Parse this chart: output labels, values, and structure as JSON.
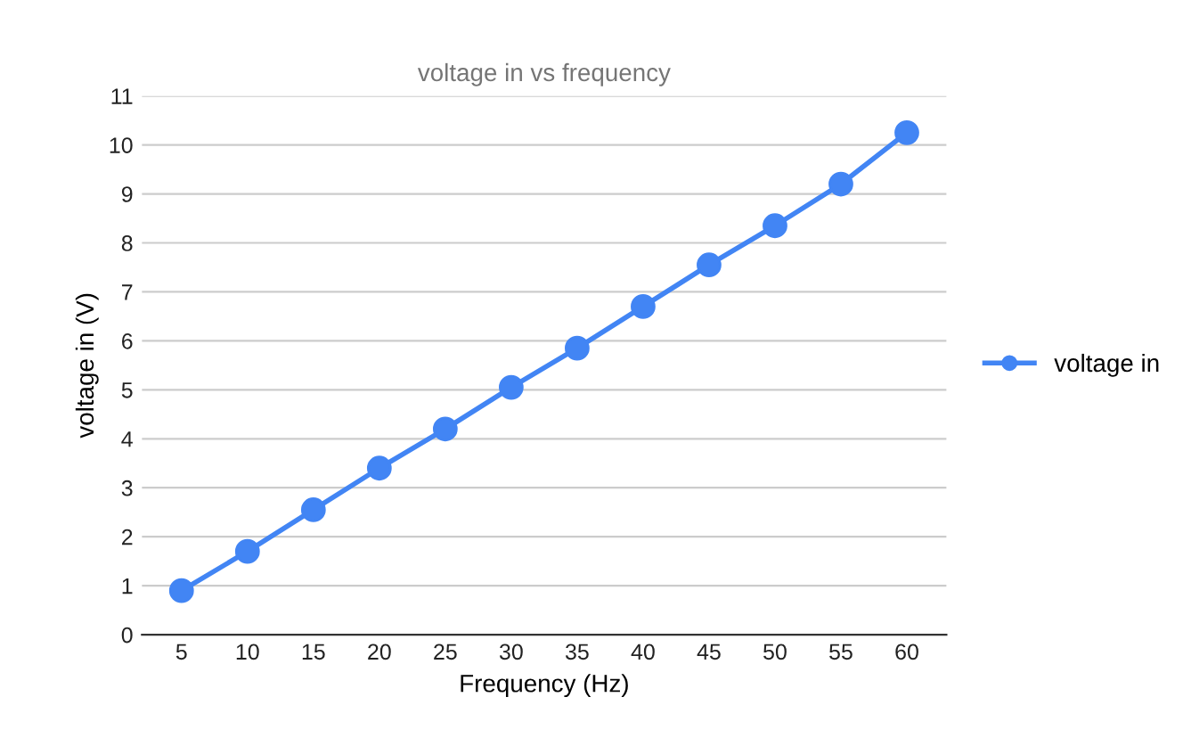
{
  "chart_data": {
    "type": "line",
    "title": "voltage in vs frequency",
    "xlabel": "Frequency (Hz)",
    "ylabel": "voltage in (V)",
    "categories": [
      "5",
      "10",
      "15",
      "20",
      "25",
      "30",
      "35",
      "40",
      "45",
      "50",
      "55",
      "60"
    ],
    "series": [
      {
        "name": "voltage in",
        "color": "#4285f4",
        "values": [
          0.9,
          1.7,
          2.55,
          3.4,
          4.2,
          5.05,
          5.85,
          6.7,
          7.55,
          8.35,
          9.2,
          10.25
        ]
      }
    ],
    "ylim": [
      0,
      11
    ],
    "yticks": [
      0,
      1,
      2,
      3,
      4,
      5,
      6,
      7,
      8,
      9,
      10,
      11
    ],
    "grid": "y",
    "legend": "right",
    "marker": "circle",
    "line_style": "solid"
  }
}
